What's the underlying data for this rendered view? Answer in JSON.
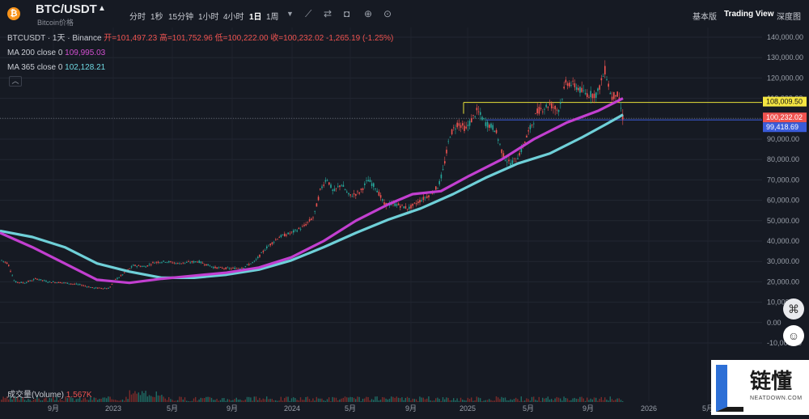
{
  "header": {
    "coin_icon": "bitcoin-icon",
    "symbol": "BTC/USDT",
    "subtitle": "Bitcoin价格",
    "timeframes": [
      "分时",
      "1秒",
      "15分钟",
      "1小时",
      "4小时",
      "1日",
      "1周"
    ],
    "active_timeframe": "1日",
    "tool_icons": [
      "chevron-down-icon",
      "indicator-icon",
      "compare-icon",
      "camera-icon",
      "add-icon",
      "settings-icon"
    ],
    "right_buttons": [
      "基本版",
      "Trading View",
      "深度图"
    ]
  },
  "legend": {
    "pair_line": "BTCUSDT · 1天 · Binance",
    "open_label": "开=101,497.23",
    "high_label": "高=101,752.96",
    "low_label": "低=100,222.00",
    "close_label": "收=100,232.02",
    "change": "-1,265.19 (-1.25%)",
    "ma200_label": "MA 200 close 0",
    "ma200_value": "109,995.03",
    "ma365_label": "MA 365 close 0",
    "ma365_value": "102,128.21",
    "collapse_icon": "chevron-up-icon"
  },
  "volume": {
    "label": "成交量(Volume)",
    "value": "1.567K"
  },
  "chart_data": {
    "type": "candlestick",
    "y_ticks": [
      "140,000.00",
      "130,000.00",
      "120,000.00",
      "110,000.00",
      "100,000.00",
      "90,000.00",
      "80,000.00",
      "70,000.00",
      "60,000.00",
      "50,000.00",
      "40,000.00",
      "30,000.00",
      "20,000.00",
      "10,000.00",
      "0.00",
      "-10,000.00"
    ],
    "x_ticks": [
      "9月",
      "2023",
      "5月",
      "9月",
      "2024",
      "5月",
      "9月",
      "2025",
      "5月",
      "9月",
      "2026",
      "5月"
    ],
    "ylim": [
      -10000,
      140000
    ],
    "horizontal_line_yellow": 108009.5,
    "horizontal_line_blue": 99418.69,
    "price_labels": [
      {
        "text": "108,009.50",
        "value": 108009.5,
        "color": "#f5e642",
        "text_color": "#111111"
      },
      {
        "text": "100,232.02",
        "value": 100232.02,
        "color": "#ef5350",
        "text_color": "#ffffff"
      },
      {
        "text": "99,418.69",
        "value": 99418.69,
        "color": "#3a5bd9",
        "text_color": "#ffffff"
      }
    ],
    "price_path": [
      [
        0,
        31000
      ],
      [
        10,
        29000
      ],
      [
        18,
        20000
      ],
      [
        30,
        19500
      ],
      [
        45,
        21500
      ],
      [
        60,
        20000
      ],
      [
        80,
        19500
      ],
      [
        100,
        18500
      ],
      [
        115,
        17000
      ],
      [
        135,
        16800
      ],
      [
        142,
        21000
      ],
      [
        150,
        23000
      ],
      [
        165,
        28000
      ],
      [
        180,
        27500
      ],
      [
        190,
        29500
      ],
      [
        205,
        30000
      ],
      [
        220,
        29000
      ],
      [
        245,
        30000
      ],
      [
        265,
        27000
      ],
      [
        285,
        26500
      ],
      [
        300,
        27000
      ],
      [
        315,
        30000
      ],
      [
        330,
        37000
      ],
      [
        345,
        42000
      ],
      [
        360,
        44000
      ],
      [
        375,
        47000
      ],
      [
        388,
        52000
      ],
      [
        396,
        65000
      ],
      [
        404,
        71000
      ],
      [
        412,
        64000
      ],
      [
        422,
        68000
      ],
      [
        432,
        62000
      ],
      [
        445,
        64000
      ],
      [
        455,
        70000
      ],
      [
        465,
        66000
      ],
      [
        475,
        58000
      ],
      [
        490,
        58000
      ],
      [
        505,
        56000
      ],
      [
        520,
        60000
      ],
      [
        532,
        63000
      ],
      [
        542,
        67000
      ],
      [
        548,
        75000
      ],
      [
        556,
        92000
      ],
      [
        566,
        98000
      ],
      [
        576,
        95000
      ],
      [
        590,
        104000
      ],
      [
        600,
        98000
      ],
      [
        612,
        95000
      ],
      [
        622,
        82000
      ],
      [
        630,
        78000
      ],
      [
        638,
        80000
      ],
      [
        645,
        85000
      ],
      [
        655,
        95000
      ],
      [
        665,
        104000
      ],
      [
        680,
        107000
      ],
      [
        690,
        104000
      ],
      [
        700,
        118000
      ],
      [
        712,
        116000
      ],
      [
        720,
        113000
      ],
      [
        728,
        112000
      ],
      [
        738,
        112000
      ],
      [
        748,
        124000
      ],
      [
        756,
        110000
      ],
      [
        762,
        113000
      ],
      [
        766,
        108000
      ],
      [
        770,
        100500
      ]
    ],
    "ma200_path": [
      [
        0,
        44000
      ],
      [
        40,
        37000
      ],
      [
        80,
        29000
      ],
      [
        120,
        21000
      ],
      [
        160,
        19500
      ],
      [
        200,
        21500
      ],
      [
        240,
        23000
      ],
      [
        280,
        24500
      ],
      [
        320,
        27000
      ],
      [
        360,
        32000
      ],
      [
        400,
        40000
      ],
      [
        440,
        50000
      ],
      [
        480,
        58000
      ],
      [
        510,
        63000
      ],
      [
        545,
        64500
      ],
      [
        580,
        72000
      ],
      [
        620,
        80000
      ],
      [
        660,
        90000
      ],
      [
        700,
        98000
      ],
      [
        740,
        104000
      ],
      [
        770,
        110000
      ]
    ],
    "ma365_path": [
      [
        0,
        45000
      ],
      [
        40,
        42000
      ],
      [
        80,
        37000
      ],
      [
        120,
        29000
      ],
      [
        160,
        25000
      ],
      [
        200,
        22000
      ],
      [
        240,
        22000
      ],
      [
        280,
        23500
      ],
      [
        320,
        26000
      ],
      [
        360,
        30500
      ],
      [
        400,
        37000
      ],
      [
        440,
        44000
      ],
      [
        480,
        50500
      ],
      [
        520,
        56000
      ],
      [
        560,
        63000
      ],
      [
        600,
        71000
      ],
      [
        640,
        78000
      ],
      [
        680,
        83000
      ],
      [
        720,
        91000
      ],
      [
        750,
        97500
      ],
      [
        770,
        102000
      ]
    ]
  },
  "side_icons": [
    "expand-icon",
    "assistant-icon"
  ],
  "watermark": {
    "cn": "链懂",
    "en": "NEATDOWN.COM"
  }
}
